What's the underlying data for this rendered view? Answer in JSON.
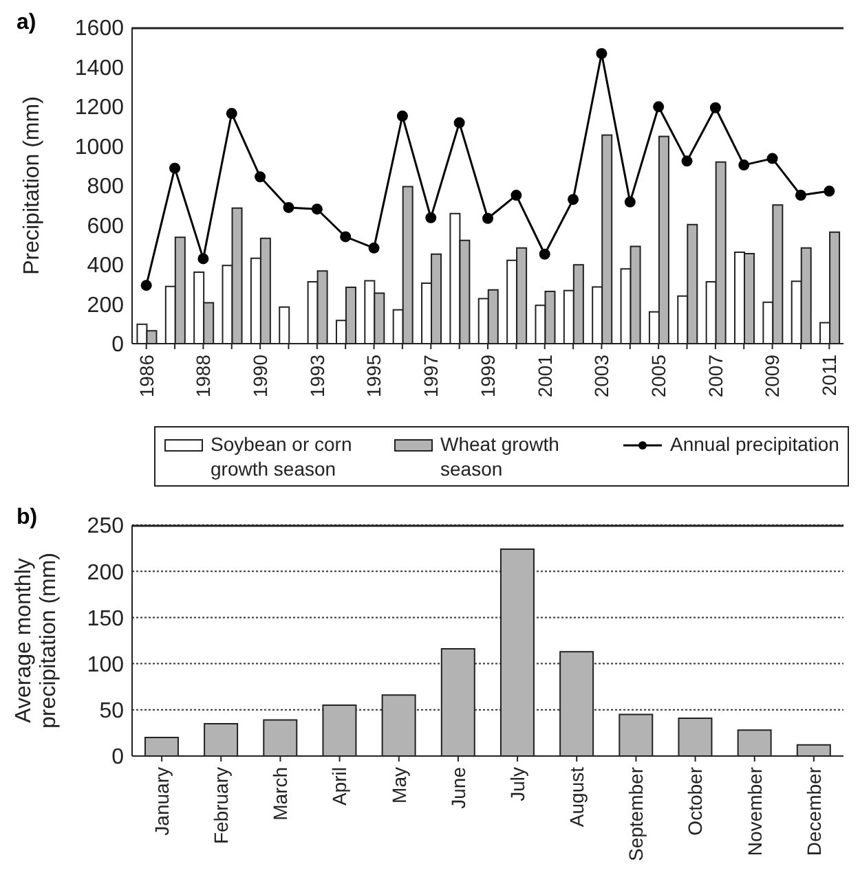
{
  "chart_data": [
    {
      "type": "bar",
      "title": "a)",
      "ylabel": "Precipitation (mm)",
      "categories": [
        "1986",
        null,
        "1988",
        null,
        "1990",
        null,
        "1993",
        null,
        "1995",
        null,
        "1997",
        null,
        "1999",
        null,
        "2001",
        null,
        "2003",
        null,
        "2005",
        null,
        "2007",
        null,
        "2009",
        null,
        "2011"
      ],
      "series": [
        {
          "name": "Soybean or corn growth season",
          "color": "#ffffff",
          "values": [
            98,
            290,
            362,
            396,
            432,
            185,
            313,
            117,
            318,
            171,
            306,
            658,
            228,
            422,
            194,
            269,
            287,
            378,
            161,
            241,
            313,
            463,
            210,
            316,
            106
          ]
        },
        {
          "name": "Wheat growth season",
          "color": "#b3b3b3",
          "values": [
            65,
            538,
            207,
            686,
            533,
            null,
            368,
            285,
            256,
            795,
            453,
            523,
            272,
            484,
            264,
            399,
            1056,
            492,
            1049,
            603,
            919,
            456,
            702,
            484,
            564
          ]
        },
        {
          "name": "Annual precipitation",
          "type": "line",
          "color": "#000000",
          "values": [
            295,
            888,
            430,
            1165,
            844,
            689,
            681,
            541,
            484,
            1152,
            637,
            1118,
            634,
            751,
            453,
            730,
            1468,
            717,
            1199,
            924,
            1194,
            904,
            937,
            751,
            772
          ]
        }
      ],
      "ylim": [
        0,
        1600
      ],
      "yticks": [
        0,
        200,
        400,
        600,
        800,
        1000,
        1200,
        1400,
        1600
      ],
      "legend": "bottom",
      "marker": "circle",
      "line_style": "solid"
    },
    {
      "type": "bar",
      "title": "b)",
      "ylabel": "Average monthly precipitation (mm)",
      "categories": [
        "January",
        "February",
        "March",
        "April",
        "May",
        "June",
        "July",
        "August",
        "September",
        "October",
        "November",
        "December"
      ],
      "values": [
        20,
        35,
        39,
        55,
        66,
        116,
        224,
        113,
        45,
        41,
        28,
        12
      ],
      "color": "#b3b3b3",
      "ylim": [
        0,
        250
      ],
      "yticks": [
        0,
        50,
        100,
        150,
        200,
        250
      ],
      "grid": "y"
    }
  ]
}
